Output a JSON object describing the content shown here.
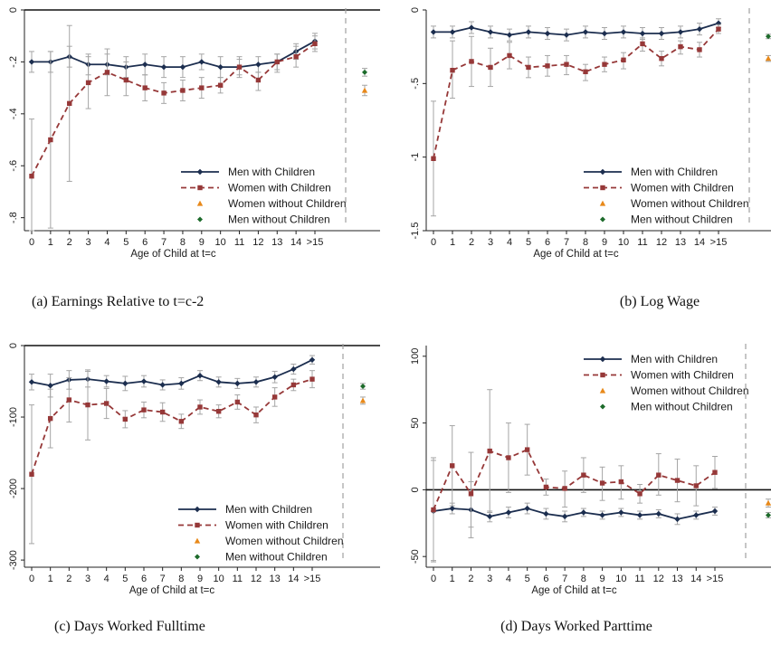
{
  "legend_labels": [
    "Men with Children",
    "Women with Children",
    "Women without Children",
    "Men without Children"
  ],
  "x_title": "Age of Child at t=c",
  "x_ticks": [
    "0",
    "1",
    "2",
    "3",
    "4",
    "5",
    "6",
    "7",
    "8",
    "9",
    "10",
    "11",
    "12",
    "13",
    "14",
    ">15"
  ],
  "colors": {
    "men": "#1c2e4f",
    "women": "#963838",
    "women_no": "#e8891a",
    "men_no": "#1d6b2b",
    "ci": "#a5a5a5",
    "guide": "#a0a0a0"
  },
  "chart_data": [
    {
      "id": "a",
      "type": "line",
      "caption": "(a)  Earnings Relative to t=c-2",
      "ylim": [
        -0.85,
        0.0
      ],
      "yticks": [
        "0",
        "-.2",
        "-.4",
        "-.6",
        "-.8"
      ],
      "legend_position": "bottom-right",
      "reference_line": 0,
      "series": [
        {
          "name": "Men with Children",
          "values": [
            -0.2,
            -0.2,
            -0.18,
            -0.21,
            -0.21,
            -0.22,
            -0.21,
            -0.22,
            -0.22,
            -0.2,
            -0.22,
            -0.22,
            -0.21,
            -0.2,
            -0.16,
            -0.12
          ],
          "low": [
            -0.24,
            -0.24,
            -0.22,
            -0.25,
            -0.25,
            -0.26,
            -0.25,
            -0.26,
            -0.26,
            -0.23,
            -0.26,
            -0.26,
            -0.24,
            -0.23,
            -0.19,
            -0.15
          ],
          "high": [
            -0.16,
            -0.16,
            -0.14,
            -0.17,
            -0.17,
            -0.18,
            -0.17,
            -0.18,
            -0.18,
            -0.17,
            -0.18,
            -0.18,
            -0.18,
            -0.17,
            -0.13,
            -0.09
          ]
        },
        {
          "name": "Women with Children",
          "values": [
            -0.64,
            -0.5,
            -0.36,
            -0.28,
            -0.24,
            -0.27,
            -0.3,
            -0.32,
            -0.31,
            -0.3,
            -0.29,
            -0.22,
            -0.27,
            -0.2,
            -0.18,
            -0.13
          ],
          "low": [
            -0.85,
            -0.84,
            -0.66,
            -0.38,
            -0.33,
            -0.33,
            -0.35,
            -0.36,
            -0.35,
            -0.34,
            -0.32,
            -0.25,
            -0.31,
            -0.24,
            -0.22,
            -0.16
          ],
          "high": [
            -0.42,
            -0.16,
            -0.06,
            -0.18,
            -0.15,
            -0.2,
            -0.25,
            -0.28,
            -0.27,
            -0.26,
            -0.26,
            -0.19,
            -0.24,
            -0.17,
            -0.14,
            -0.1
          ]
        },
        {
          "name": "Women without Children",
          "value": -0.31,
          "low": -0.33,
          "high": -0.29
        },
        {
          "name": "Men without Children",
          "value": -0.24,
          "low": -0.255,
          "high": -0.225
        }
      ]
    },
    {
      "id": "b",
      "type": "line",
      "caption": "(b)  Log Wage",
      "ylim": [
        -1.5,
        0.0
      ],
      "yticks": [
        "0",
        "-.5",
        "-1",
        "-1.5"
      ],
      "legend_position": "bottom-right",
      "reference_line": null,
      "series": [
        {
          "name": "Men with Children",
          "values": [
            -0.15,
            -0.15,
            -0.12,
            -0.15,
            -0.17,
            -0.15,
            -0.16,
            -0.17,
            -0.15,
            -0.16,
            -0.15,
            -0.16,
            -0.16,
            -0.15,
            -0.13,
            -0.09
          ],
          "low": [
            -0.19,
            -0.19,
            -0.16,
            -0.19,
            -0.21,
            -0.19,
            -0.2,
            -0.21,
            -0.19,
            -0.2,
            -0.19,
            -0.2,
            -0.2,
            -0.19,
            -0.17,
            -0.12
          ],
          "high": [
            -0.11,
            -0.11,
            -0.08,
            -0.11,
            -0.13,
            -0.11,
            -0.12,
            -0.13,
            -0.11,
            -0.12,
            -0.11,
            -0.12,
            -0.12,
            -0.11,
            -0.09,
            -0.06
          ]
        },
        {
          "name": "Women with Children",
          "values": [
            -1.01,
            -0.41,
            -0.35,
            -0.39,
            -0.31,
            -0.39,
            -0.38,
            -0.37,
            -0.42,
            -0.37,
            -0.34,
            -0.23,
            -0.33,
            -0.25,
            -0.27,
            -0.13
          ],
          "low": [
            -1.4,
            -0.6,
            -0.52,
            -0.52,
            -0.4,
            -0.46,
            -0.45,
            -0.44,
            -0.48,
            -0.42,
            -0.4,
            -0.28,
            -0.38,
            -0.3,
            -0.32,
            -0.16
          ],
          "high": [
            -0.62,
            -0.21,
            -0.18,
            -0.26,
            -0.22,
            -0.32,
            -0.31,
            -0.31,
            -0.37,
            -0.32,
            -0.29,
            -0.19,
            -0.28,
            -0.21,
            -0.22,
            -0.1
          ]
        },
        {
          "name": "Women without Children",
          "value": -0.33,
          "low": -0.35,
          "high": -0.31
        },
        {
          "name": "Men without Children",
          "value": -0.18,
          "low": -0.195,
          "high": -0.165
        }
      ]
    },
    {
      "id": "c",
      "type": "line",
      "caption": "(c)  Days Worked Fulltime",
      "ylim": [
        -310,
        0
      ],
      "yticks": [
        "0",
        "-100",
        "-200",
        "-300"
      ],
      "legend_position": "bottom-right",
      "reference_line": 0,
      "series": [
        {
          "name": "Men with Children",
          "values": [
            -51,
            -56,
            -48,
            -47,
            -50,
            -53,
            -50,
            -55,
            -53,
            -42,
            -51,
            -53,
            -51,
            -44,
            -33,
            -20
          ],
          "low": [
            -62,
            -72,
            -61,
            -58,
            -58,
            -63,
            -58,
            -62,
            -61,
            -49,
            -58,
            -60,
            -58,
            -52,
            -40,
            -26
          ],
          "high": [
            -40,
            -40,
            -35,
            -36,
            -42,
            -43,
            -42,
            -48,
            -45,
            -35,
            -44,
            -46,
            -44,
            -36,
            -26,
            -14
          ]
        },
        {
          "name": "Women with Children",
          "values": [
            -180,
            -102,
            -76,
            -83,
            -81,
            -103,
            -90,
            -93,
            -106,
            -86,
            -92,
            -79,
            -97,
            -72,
            -55,
            -47
          ],
          "low": [
            -277,
            -143,
            -107,
            -132,
            -102,
            -115,
            -101,
            -106,
            -116,
            -96,
            -101,
            -89,
            -108,
            -85,
            -63,
            -59
          ],
          "high": [
            -83,
            -61,
            -45,
            -34,
            -60,
            -91,
            -79,
            -80,
            -96,
            -76,
            -83,
            -69,
            -86,
            -59,
            -47,
            -35
          ]
        },
        {
          "name": "Women without Children",
          "value": -77,
          "low": -82,
          "high": -72
        },
        {
          "name": "Men without Children",
          "value": -57,
          "low": -61,
          "high": -53
        }
      ]
    },
    {
      "id": "d",
      "type": "line",
      "caption": "(d)  Days Worked Parttime",
      "ylim": [
        -58,
        108
      ],
      "yticks": [
        "100",
        "50",
        "0",
        "-50"
      ],
      "legend_position": "top-right",
      "reference_line": 0,
      "series": [
        {
          "name": "Men with Children",
          "values": [
            -16,
            -14,
            -15,
            -20,
            -17,
            -14,
            -18,
            -20,
            -17,
            -19,
            -17,
            -19,
            -18,
            -22,
            -19,
            -16
          ],
          "low": [
            -54,
            -18,
            -36,
            -24,
            -21,
            -18,
            -22,
            -24,
            -20,
            -22,
            -20,
            -22,
            -21,
            -26,
            -22,
            -19
          ],
          "high": [
            22,
            -10,
            6,
            -16,
            -13,
            -10,
            -14,
            -16,
            -14,
            -16,
            -14,
            -16,
            -15,
            -18,
            -16,
            -13
          ]
        },
        {
          "name": "Women with Children",
          "values": [
            -15,
            18,
            -3,
            29,
            24,
            30,
            2,
            1,
            11,
            5,
            6,
            -3,
            11,
            7,
            3,
            13
          ],
          "low": [
            -53,
            -12,
            -28,
            -17,
            -2,
            11,
            -4,
            -13,
            -2,
            -8,
            -7,
            -10,
            -4,
            -9,
            -12,
            1
          ],
          "high": [
            24,
            48,
            28,
            75,
            50,
            49,
            8,
            14,
            24,
            17,
            18,
            4,
            27,
            23,
            18,
            25
          ]
        },
        {
          "name": "Women without Children",
          "value": -10,
          "low": -13,
          "high": -7
        },
        {
          "name": "Men without Children",
          "value": -19,
          "low": -21,
          "high": -17
        }
      ]
    }
  ]
}
